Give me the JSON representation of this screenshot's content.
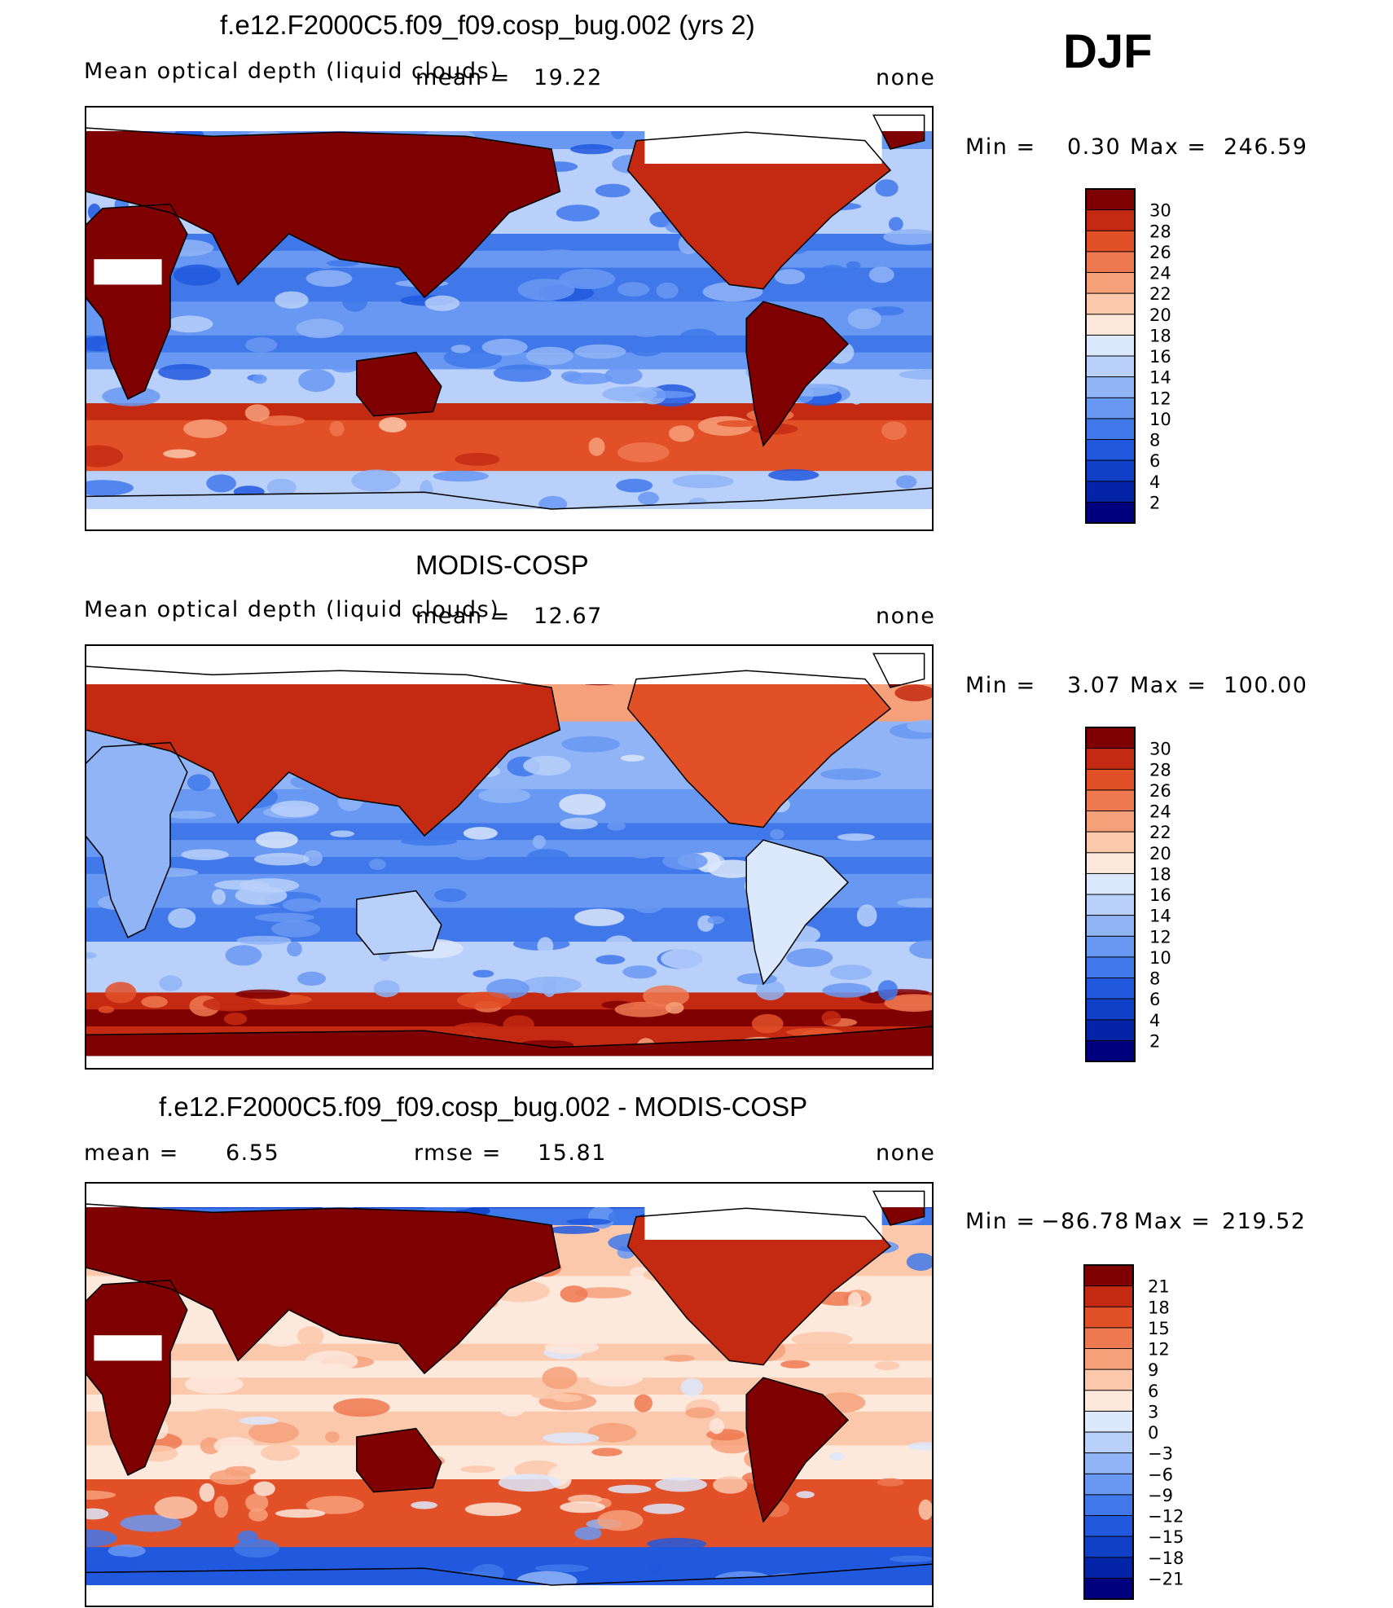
{
  "season": "DJF",
  "panels": [
    {
      "title": "f.e12.F2000C5.f09_f09.cosp_bug.002 (yrs 2)",
      "variable": "Mean optical depth (liquid clouds)",
      "stat1_label": "mean =",
      "stat1_value": "19.22",
      "stat2_label": "",
      "stat2_value": "",
      "units": "none",
      "min_label": "Min =",
      "min_value": "0.30",
      "max_label": "Max =",
      "max_value": "246.59",
      "colorbar_ticks": [
        "30",
        "28",
        "26",
        "24",
        "22",
        "20",
        "18",
        "16",
        "14",
        "12",
        "10",
        "8",
        "6",
        "4",
        "2"
      ]
    },
    {
      "title": "MODIS-COSP",
      "variable": "Mean optical depth (liquid clouds)",
      "stat1_label": "mean =",
      "stat1_value": "12.67",
      "stat2_label": "",
      "stat2_value": "",
      "units": "none",
      "min_label": "Min =",
      "min_value": "3.07",
      "max_label": "Max =",
      "max_value": "100.00",
      "colorbar_ticks": [
        "30",
        "28",
        "26",
        "24",
        "22",
        "20",
        "18",
        "16",
        "14",
        "12",
        "10",
        "8",
        "6",
        "4",
        "2"
      ]
    },
    {
      "title": "f.e12.F2000C5.f09_f09.cosp_bug.002 - MODIS-COSP",
      "variable": "",
      "stat1_label": "mean =",
      "stat1_value": "6.55",
      "stat2_label": "rmse =",
      "stat2_value": "15.81",
      "units": "none",
      "min_label": "Min =",
      "min_value": "−86.78",
      "max_label": "Max =",
      "max_value": "219.52",
      "colorbar_ticks": [
        "21",
        "18",
        "15",
        "12",
        "9",
        "6",
        "3",
        "0",
        "−3",
        "−6",
        "−9",
        "−12",
        "−15",
        "−18",
        "−21"
      ]
    }
  ],
  "colors": {
    "abs_scale": [
      "#00007f",
      "#0424a8",
      "#1040c8",
      "#2058de",
      "#4078ea",
      "#6898f2",
      "#90b4f6",
      "#b8d0fa",
      "#dce8fc",
      "#fde8dc",
      "#fbc8ac",
      "#f6a07a",
      "#ee7850",
      "#e25028",
      "#c42a12",
      "#7f0000"
    ],
    "diff_scale": [
      "#00007f",
      "#0424a8",
      "#1040c8",
      "#2058de",
      "#4078ea",
      "#6898f2",
      "#90b4f6",
      "#b8d0fa",
      "#dce8fc",
      "#fde8dc",
      "#fbc8ac",
      "#f6a07a",
      "#ee7850",
      "#e25028",
      "#c42a12",
      "#7f0000"
    ]
  },
  "chart_data": [
    {
      "type": "heatmap",
      "title": "f.e12.F2000C5.f09_f09.cosp_bug.002 (yrs 2)",
      "variable": "Mean optical depth (liquid clouds)",
      "mean": 19.22,
      "min": 0.3,
      "max": 246.59,
      "units": "none",
      "contour_levels": [
        2,
        4,
        6,
        8,
        10,
        12,
        14,
        16,
        18,
        20,
        22,
        24,
        26,
        28,
        30
      ]
    },
    {
      "type": "heatmap",
      "title": "MODIS-COSP",
      "variable": "Mean optical depth (liquid clouds)",
      "mean": 12.67,
      "min": 3.07,
      "max": 100.0,
      "units": "none",
      "contour_levels": [
        2,
        4,
        6,
        8,
        10,
        12,
        14,
        16,
        18,
        20,
        22,
        24,
        26,
        28,
        30
      ]
    },
    {
      "type": "heatmap",
      "title": "f.e12.F2000C5.f09_f09.cosp_bug.002 - MODIS-COSP",
      "mean": 6.55,
      "rmse": 15.81,
      "min": -86.78,
      "max": 219.52,
      "units": "none",
      "contour_levels": [
        -21,
        -18,
        -15,
        -12,
        -9,
        -6,
        -3,
        0,
        3,
        6,
        9,
        12,
        15,
        18,
        21
      ]
    }
  ]
}
